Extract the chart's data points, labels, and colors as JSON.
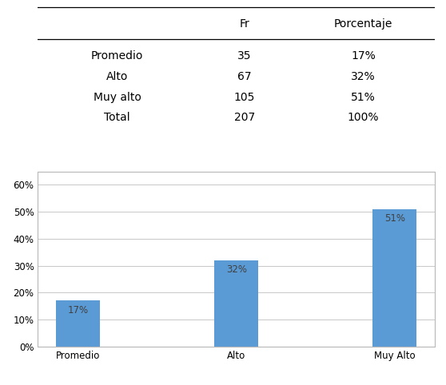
{
  "table": {
    "headers": [
      "",
      "Fr",
      "Porcentaje"
    ],
    "rows": [
      [
        "Promedio",
        "35",
        "17%"
      ],
      [
        "Alto",
        "67",
        "32%"
      ],
      [
        "Muy alto",
        "105",
        "51%"
      ],
      [
        "Total",
        "207",
        "100%"
      ]
    ]
  },
  "chart": {
    "categories": [
      "Promedio",
      "Alto",
      "Muy Alto"
    ],
    "values": [
      17,
      32,
      51
    ],
    "labels": [
      "17%",
      "32%",
      "51%"
    ],
    "bar_color": "#5B9BD5",
    "ylim": [
      0,
      65
    ],
    "yticks": [
      0,
      10,
      20,
      30,
      40,
      50,
      60
    ],
    "ytick_labels": [
      "0%",
      "10%",
      "20%",
      "30%",
      "40%",
      "50%",
      "60%"
    ],
    "grid_color": "#C8C8C8",
    "background_color": "#FFFFFF",
    "label_color": "#404040",
    "label_fontsize": 8.5,
    "tick_fontsize": 8.5,
    "bar_width": 0.28
  }
}
